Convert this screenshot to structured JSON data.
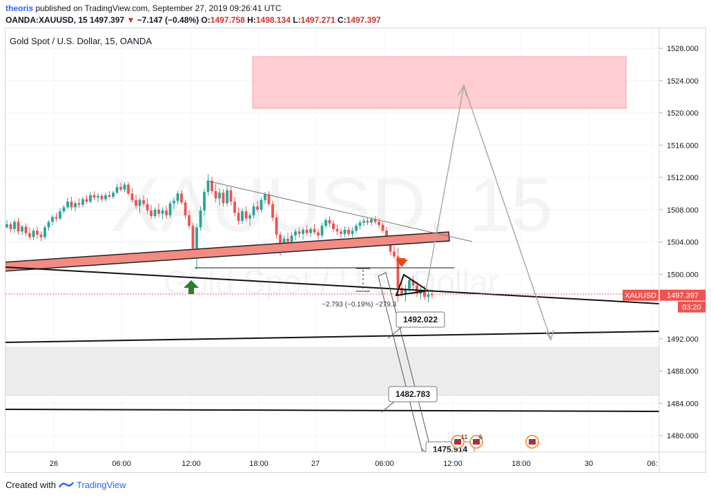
{
  "header": {
    "author": "theoris",
    "published_text": "published on TradingView.com, September 27, 2019 09:26:41 UTC",
    "symbol": "OANDA:XAUUSD, 15",
    "last": "1497.397",
    "change_arrow": "▼",
    "change": "−7.147 (−0.48%)",
    "o_label": "O:",
    "o_value": "1497.758",
    "h_label": "H:",
    "h_value": "1498.134",
    "l_label": "L:",
    "l_value": "1497.271",
    "c_label": "C:",
    "c_value": "1497.397"
  },
  "chart_data": {
    "type": "candlestick",
    "title": "Gold Spot / U.S. Dollar, 15, OANDA",
    "watermark_symbol": "XAUUSD, 15",
    "watermark_name": "Gold Spot / U.S. Dollar",
    "ylim": [
      1477.5,
      1532.5
    ],
    "y_ticks": [
      "1528.000",
      "1524.000",
      "1520.000",
      "1516.000",
      "1512.000",
      "1508.000",
      "1504.000",
      "1500.000",
      "1492.000",
      "1488.000",
      "1484.000",
      "1480.000"
    ],
    "y_tick_values": [
      1528,
      1524,
      1520,
      1516,
      1512,
      1508,
      1504,
      1500,
      1492,
      1488,
      1484,
      1480
    ],
    "x_ticks": [
      "26",
      "06:00",
      "12:00",
      "18:00",
      "27",
      "06:00",
      "12:00",
      "18:00",
      "30",
      "06:"
    ],
    "price_label": "XAUUSD",
    "last_price": "1497.397",
    "countdown": "03:20",
    "colors": {
      "up": "#26a69a",
      "down": "#ef5350",
      "accent": "#2962ff",
      "zone_red": "#ffcdd2",
      "zone_grey": "#ececec"
    },
    "annotations": [
      {
        "text": "1492.022",
        "price": 1492.022
      },
      {
        "text": "1482.783",
        "price": 1482.783
      },
      {
        "text": "1475.914",
        "price": 1475.914
      },
      {
        "text": "−2.793 (−0.19%)  −279.3",
        "kind": "measure"
      }
    ],
    "event_flags": [
      "11",
      "6"
    ],
    "signals": [
      {
        "kind": "buy-arrow",
        "color": "#2e7d32"
      },
      {
        "kind": "sell-arrow",
        "color": "#e64a19"
      }
    ],
    "zones": [
      {
        "kind": "resistance",
        "from": 1520.5,
        "to": 1527.0
      },
      {
        "kind": "support",
        "from": 1485.0,
        "to": 1491.0
      }
    ],
    "candles": [
      [
        1505.8,
        1506.7,
        1505.7,
        1506.2
      ],
      [
        1506.2,
        1506.5,
        1505.2,
        1505.6
      ],
      [
        1505.6,
        1506.8,
        1505.1,
        1506.5
      ],
      [
        1506.5,
        1507.0,
        1504.9,
        1505.3
      ],
      [
        1505.3,
        1506.1,
        1504.8,
        1505.9
      ],
      [
        1505.9,
        1506.3,
        1504.7,
        1505.1
      ],
      [
        1505.1,
        1505.8,
        1504.3,
        1504.6
      ],
      [
        1504.6,
        1505.7,
        1504.2,
        1505.4
      ],
      [
        1505.4,
        1505.9,
        1504.4,
        1504.9
      ],
      [
        1504.9,
        1505.3,
        1504.1,
        1504.6
      ],
      [
        1504.6,
        1506.1,
        1504.3,
        1505.8
      ],
      [
        1505.8,
        1506.7,
        1505.4,
        1506.5
      ],
      [
        1506.5,
        1507.4,
        1506.1,
        1507.1
      ],
      [
        1507.1,
        1507.6,
        1506.5,
        1506.9
      ],
      [
        1506.9,
        1508.2,
        1506.7,
        1507.8
      ],
      [
        1507.8,
        1508.6,
        1507.5,
        1508.3
      ],
      [
        1508.3,
        1509.5,
        1508.1,
        1509.0
      ],
      [
        1509.0,
        1509.6,
        1507.9,
        1508.3
      ],
      [
        1508.3,
        1509.1,
        1507.8,
        1508.8
      ],
      [
        1508.8,
        1509.4,
        1508.2,
        1508.6
      ],
      [
        1508.6,
        1509.6,
        1508.3,
        1509.3
      ],
      [
        1509.3,
        1509.8,
        1508.7,
        1509.0
      ],
      [
        1509.0,
        1510.2,
        1508.8,
        1509.8
      ],
      [
        1509.8,
        1510.3,
        1509.2,
        1509.5
      ],
      [
        1509.5,
        1510.1,
        1508.9,
        1509.7
      ],
      [
        1509.7,
        1510.0,
        1509.0,
        1509.3
      ],
      [
        1509.3,
        1510.1,
        1509.0,
        1509.8
      ],
      [
        1509.8,
        1510.3,
        1509.4,
        1509.6
      ],
      [
        1509.6,
        1510.4,
        1509.3,
        1510.1
      ],
      [
        1510.1,
        1511.2,
        1509.9,
        1510.8
      ],
      [
        1510.8,
        1511.3,
        1510.3,
        1510.5
      ],
      [
        1510.5,
        1511.4,
        1510.2,
        1511.1
      ],
      [
        1511.1,
        1511.4,
        1509.8,
        1510.0
      ],
      [
        1510.0,
        1510.7,
        1508.9,
        1509.2
      ],
      [
        1509.2,
        1509.9,
        1508.1,
        1508.5
      ],
      [
        1508.5,
        1509.5,
        1507.6,
        1509.2
      ],
      [
        1509.2,
        1509.8,
        1508.3,
        1508.7
      ],
      [
        1508.7,
        1509.4,
        1507.4,
        1507.9
      ],
      [
        1507.9,
        1508.6,
        1506.8,
        1507.2
      ],
      [
        1507.2,
        1508.3,
        1506.9,
        1508.0
      ],
      [
        1508.0,
        1508.8,
        1507.1,
        1507.5
      ],
      [
        1507.5,
        1508.3,
        1506.8,
        1507.9
      ],
      [
        1507.9,
        1508.5,
        1506.9,
        1507.3
      ],
      [
        1507.3,
        1509.1,
        1507.0,
        1508.8
      ],
      [
        1508.8,
        1509.5,
        1508.1,
        1509.1
      ],
      [
        1509.1,
        1510.3,
        1508.7,
        1510.0
      ],
      [
        1510.0,
        1510.4,
        1508.6,
        1508.9
      ],
      [
        1508.9,
        1509.2,
        1506.9,
        1507.3
      ],
      [
        1507.3,
        1507.9,
        1505.6,
        1506.0
      ],
      [
        1506.0,
        1506.4,
        1502.2,
        1503.2
      ],
      [
        1503.2,
        1506.3,
        1500.6,
        1505.8
      ],
      [
        1505.8,
        1508.4,
        1505.4,
        1507.9
      ],
      [
        1507.9,
        1510.6,
        1507.3,
        1510.2
      ],
      [
        1510.2,
        1512.4,
        1509.7,
        1511.6
      ],
      [
        1511.6,
        1512.1,
        1509.9,
        1510.3
      ],
      [
        1510.3,
        1511.2,
        1508.9,
        1509.4
      ],
      [
        1509.4,
        1510.6,
        1508.5,
        1510.1
      ],
      [
        1510.1,
        1510.5,
        1508.4,
        1508.8
      ],
      [
        1508.8,
        1510.9,
        1508.4,
        1510.4
      ],
      [
        1510.4,
        1510.8,
        1508.5,
        1509.0
      ],
      [
        1509.0,
        1509.6,
        1507.2,
        1507.6
      ],
      [
        1507.6,
        1508.3,
        1506.1,
        1506.6
      ],
      [
        1506.6,
        1508.2,
        1506.2,
        1507.8
      ],
      [
        1507.8,
        1508.4,
        1506.5,
        1506.9
      ],
      [
        1506.9,
        1507.6,
        1506.0,
        1507.3
      ],
      [
        1507.3,
        1508.8,
        1506.9,
        1508.4
      ],
      [
        1508.4,
        1509.1,
        1507.7,
        1508.0
      ],
      [
        1508.0,
        1509.5,
        1507.6,
        1509.2
      ],
      [
        1509.2,
        1510.2,
        1508.7,
        1509.9
      ],
      [
        1509.9,
        1510.3,
        1508.4,
        1508.7
      ],
      [
        1508.7,
        1509.1,
        1506.6,
        1507.0
      ],
      [
        1507.0,
        1507.4,
        1504.4,
        1504.9
      ],
      [
        1504.9,
        1505.3,
        1502.3,
        1503.5
      ],
      [
        1503.5,
        1504.8,
        1503.1,
        1504.4
      ],
      [
        1504.4,
        1505.1,
        1503.6,
        1504.0
      ],
      [
        1504.0,
        1505.2,
        1503.7,
        1504.8
      ],
      [
        1504.8,
        1505.6,
        1504.2,
        1505.3
      ],
      [
        1505.3,
        1505.8,
        1504.5,
        1505.0
      ],
      [
        1505.0,
        1505.8,
        1504.3,
        1505.5
      ],
      [
        1505.5,
        1506.1,
        1504.8,
        1505.1
      ],
      [
        1505.1,
        1505.9,
        1504.6,
        1505.6
      ],
      [
        1505.6,
        1506.2,
        1504.9,
        1505.2
      ],
      [
        1505.2,
        1505.6,
        1504.3,
        1504.8
      ],
      [
        1504.8,
        1506.4,
        1504.5,
        1506.0
      ],
      [
        1506.0,
        1507.0,
        1505.7,
        1506.7
      ],
      [
        1506.7,
        1507.2,
        1505.9,
        1506.3
      ],
      [
        1506.3,
        1506.7,
        1505.2,
        1505.6
      ],
      [
        1505.6,
        1506.1,
        1504.8,
        1505.3
      ],
      [
        1505.3,
        1505.6,
        1504.5,
        1505.0
      ],
      [
        1505.0,
        1505.9,
        1504.6,
        1505.5
      ],
      [
        1505.5,
        1505.8,
        1504.7,
        1505.0
      ],
      [
        1505.0,
        1505.8,
        1504.6,
        1505.4
      ],
      [
        1505.4,
        1506.3,
        1505.1,
        1506.0
      ],
      [
        1506.0,
        1506.7,
        1505.6,
        1506.4
      ],
      [
        1506.4,
        1506.9,
        1506.0,
        1506.6
      ],
      [
        1506.6,
        1507.0,
        1506.1,
        1506.4
      ],
      [
        1506.4,
        1507.1,
        1506.0,
        1506.8
      ],
      [
        1506.8,
        1507.2,
        1506.2,
        1506.5
      ],
      [
        1506.5,
        1506.9,
        1505.8,
        1506.1
      ],
      [
        1506.1,
        1506.4,
        1505.1,
        1505.4
      ],
      [
        1505.4,
        1505.8,
        1503.6,
        1504.0
      ],
      [
        1504.0,
        1504.4,
        1502.4,
        1502.8
      ],
      [
        1502.8,
        1503.5,
        1501.9,
        1502.2
      ],
      [
        1502.2,
        1503.3,
        1496.6,
        1498.3
      ],
      [
        1498.3,
        1499.3,
        1497.2,
        1497.6
      ],
      [
        1497.6,
        1498.7,
        1496.6,
        1498.2
      ],
      [
        1498.2,
        1499.7,
        1497.8,
        1499.3
      ],
      [
        1499.3,
        1499.8,
        1498.1,
        1498.6
      ],
      [
        1498.6,
        1499.1,
        1497.2,
        1497.6
      ],
      [
        1497.6,
        1498.4,
        1496.9,
        1498.0
      ],
      [
        1498.0,
        1498.6,
        1496.8,
        1497.2
      ],
      [
        1497.2,
        1497.9,
        1496.5,
        1497.5
      ],
      [
        1497.5,
        1498.1,
        1497.0,
        1497.4
      ]
    ]
  },
  "footer": {
    "created_with": "Created with",
    "brand": "TradingView"
  }
}
